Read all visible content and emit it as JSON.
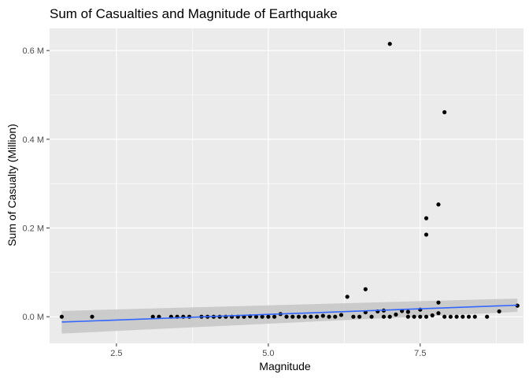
{
  "chart_data": {
    "type": "scatter",
    "title": "Sum of Casualties and Magnitude of Earthquake",
    "xlabel": "Magnitude",
    "ylabel": "Sum of Casualty (Million)",
    "xlim": [
      1.4,
      9.2
    ],
    "ylim": [
      -0.06,
      0.65
    ],
    "x_ticks": [
      {
        "value": 2.5,
        "label": "2.5"
      },
      {
        "value": 5.0,
        "label": "5.0"
      },
      {
        "value": 7.5,
        "label": "7.5"
      }
    ],
    "y_ticks": [
      {
        "value": 0.0,
        "label": "0.0 M"
      },
      {
        "value": 0.2,
        "label": "0.2 M"
      },
      {
        "value": 0.4,
        "label": "0.4 M"
      },
      {
        "value": 0.6,
        "label": "0.6 M"
      }
    ],
    "grid": true,
    "colors": {
      "panel_background": "#ebebeb",
      "grid": "#ffffff",
      "points": "#000000",
      "trend_line": "#3366ff",
      "confidence_band": "#c8c8c8"
    },
    "points": [
      {
        "x": 1.6,
        "y": 0.0
      },
      {
        "x": 2.1,
        "y": 0.0
      },
      {
        "x": 3.1,
        "y": 0.0
      },
      {
        "x": 3.2,
        "y": 0.0
      },
      {
        "x": 3.4,
        "y": 0.0
      },
      {
        "x": 3.5,
        "y": 0.0
      },
      {
        "x": 3.6,
        "y": 0.0
      },
      {
        "x": 3.7,
        "y": 0.0
      },
      {
        "x": 3.9,
        "y": 0.0
      },
      {
        "x": 4.0,
        "y": 0.0
      },
      {
        "x": 4.1,
        "y": 0.0
      },
      {
        "x": 4.2,
        "y": 0.0
      },
      {
        "x": 4.3,
        "y": 0.0
      },
      {
        "x": 4.4,
        "y": 0.0
      },
      {
        "x": 4.5,
        "y": 0.0
      },
      {
        "x": 4.6,
        "y": 0.0
      },
      {
        "x": 4.7,
        "y": 0.001
      },
      {
        "x": 4.8,
        "y": 0.0
      },
      {
        "x": 4.9,
        "y": 0.0
      },
      {
        "x": 5.0,
        "y": 0.0
      },
      {
        "x": 5.1,
        "y": 0.0
      },
      {
        "x": 5.2,
        "y": 0.006
      },
      {
        "x": 5.3,
        "y": 0.0
      },
      {
        "x": 5.4,
        "y": 0.0
      },
      {
        "x": 5.5,
        "y": 0.0
      },
      {
        "x": 5.6,
        "y": 0.0
      },
      {
        "x": 5.7,
        "y": 0.0
      },
      {
        "x": 5.8,
        "y": 0.0
      },
      {
        "x": 5.9,
        "y": 0.002
      },
      {
        "x": 6.0,
        "y": 0.0
      },
      {
        "x": 6.1,
        "y": 0.0
      },
      {
        "x": 6.2,
        "y": 0.004
      },
      {
        "x": 6.3,
        "y": 0.045
      },
      {
        "x": 6.4,
        "y": 0.0
      },
      {
        "x": 6.5,
        "y": 0.0
      },
      {
        "x": 6.6,
        "y": 0.062
      },
      {
        "x": 6.6,
        "y": 0.01
      },
      {
        "x": 6.7,
        "y": 0.0
      },
      {
        "x": 6.8,
        "y": 0.012
      },
      {
        "x": 6.9,
        "y": 0.014
      },
      {
        "x": 6.9,
        "y": 0.0
      },
      {
        "x": 7.0,
        "y": 0.615
      },
      {
        "x": 7.0,
        "y": 0.0
      },
      {
        "x": 7.1,
        "y": 0.005
      },
      {
        "x": 7.2,
        "y": 0.013
      },
      {
        "x": 7.3,
        "y": 0.011
      },
      {
        "x": 7.3,
        "y": 0.0
      },
      {
        "x": 7.4,
        "y": 0.0
      },
      {
        "x": 7.5,
        "y": 0.016
      },
      {
        "x": 7.5,
        "y": 0.0
      },
      {
        "x": 7.6,
        "y": 0.222
      },
      {
        "x": 7.6,
        "y": 0.185
      },
      {
        "x": 7.6,
        "y": 0.0
      },
      {
        "x": 7.7,
        "y": 0.003
      },
      {
        "x": 7.8,
        "y": 0.253
      },
      {
        "x": 7.8,
        "y": 0.032
      },
      {
        "x": 7.8,
        "y": 0.008
      },
      {
        "x": 7.9,
        "y": 0.461
      },
      {
        "x": 7.9,
        "y": 0.0
      },
      {
        "x": 8.0,
        "y": 0.0
      },
      {
        "x": 8.1,
        "y": 0.0
      },
      {
        "x": 8.2,
        "y": 0.0
      },
      {
        "x": 8.3,
        "y": 0.0
      },
      {
        "x": 8.4,
        "y": 0.0
      },
      {
        "x": 8.6,
        "y": 0.0
      },
      {
        "x": 8.8,
        "y": 0.012
      },
      {
        "x": 9.1,
        "y": 0.025
      }
    ],
    "trend": {
      "method": "linear fit",
      "x": [
        1.6,
        9.1
      ],
      "y": [
        -0.012,
        0.026
      ],
      "ci_lower": [
        -0.038,
        0.011
      ],
      "ci_upper": [
        0.013,
        0.041
      ]
    }
  }
}
